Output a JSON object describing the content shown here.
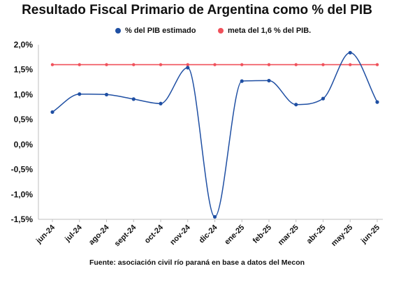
{
  "chart_data": {
    "type": "line",
    "title": "Resultado Fiscal Primario de Argentina como % del PIB",
    "xlabel": "",
    "ylabel": "",
    "categories": [
      "jun-24",
      "jul-24",
      "ago-24",
      "sept-24",
      "oct-24",
      "nov-24",
      "dic-24",
      "ene-25",
      "feb-25",
      "mar-25",
      "abr-25",
      "may-25",
      "jun-25"
    ],
    "series": [
      {
        "name": "% del PIB estimado",
        "color": "#1f4fa3",
        "values": [
          0.65,
          1.01,
          1.0,
          0.91,
          0.82,
          1.54,
          -1.45,
          1.27,
          1.28,
          0.8,
          0.92,
          1.84,
          0.85
        ]
      },
      {
        "name": "meta del 1,6 % del PIB.",
        "color": "#f0505a",
        "values": [
          1.6,
          1.6,
          1.6,
          1.6,
          1.6,
          1.6,
          1.6,
          1.6,
          1.6,
          1.6,
          1.6,
          1.6,
          1.6
        ]
      }
    ],
    "ylim": [
      -1.5,
      2.0
    ],
    "yticks": [
      -1.5,
      -1.0,
      -0.5,
      0.0,
      0.5,
      1.0,
      1.5,
      2.0
    ],
    "ytick_labels": [
      "-1,5%",
      "-1,0%",
      "-0,5%",
      "0,0%",
      "0,5%",
      "1,0%",
      "1,5%",
      "2,0%"
    ],
    "grid": false,
    "legend": "top"
  },
  "footer": "Fuente: asociación civil río paraná en base a datos del Mecon"
}
